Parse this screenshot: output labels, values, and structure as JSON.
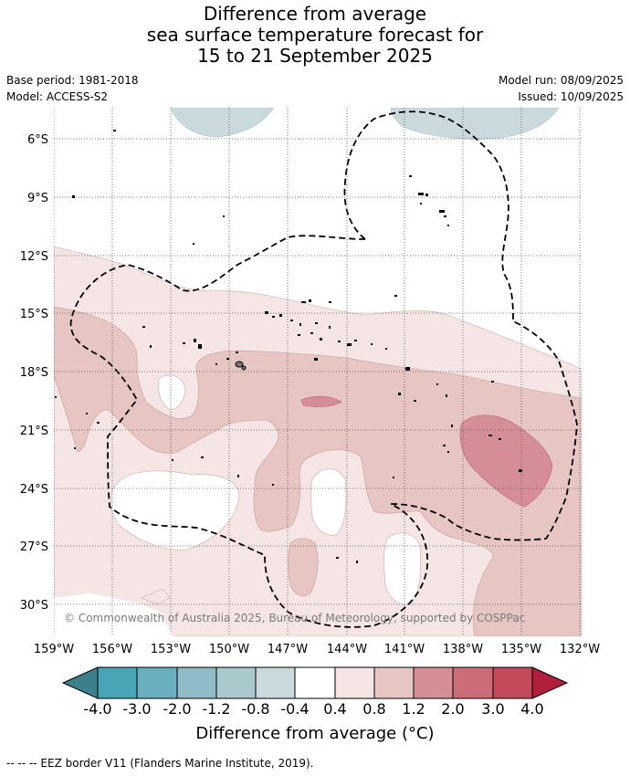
{
  "title": {
    "line1": "Difference from average",
    "line2": "sea surface temperature forecast for",
    "line3": "15 to 21 September 2025"
  },
  "meta": {
    "base_period": "Base period: 1981-2018",
    "model": "Model: ACCESS-S2",
    "model_run": "Model run: 08/09/2025",
    "issued": "Issued: 10/09/2025"
  },
  "map": {
    "lat_labels": [
      "6°S",
      "9°S",
      "12°S",
      "15°S",
      "18°S",
      "21°S",
      "24°S",
      "27°S",
      "30°S"
    ],
    "lon_labels": [
      "159°W",
      "156°W",
      "153°W",
      "150°W",
      "147°W",
      "144°W",
      "141°W",
      "138°W",
      "135°W",
      "132°W"
    ],
    "copyright": "© Commonwealth of Australia 2025, Bureau of Meteorology, supported by COSPPac",
    "colors": {
      "band_0_4_0_8": "#f5e5e4",
      "band_0_8_1_2": "#e6c5c3",
      "band_1_2_2_0": "#d58e96",
      "band_2_0_3_0": "#cc6c78",
      "band_neg_0_8_neg_0_4": "#c9d9dc",
      "eez_border": "#000000"
    }
  },
  "colorbar": {
    "title": "Difference from average (°C)",
    "tick_labels": [
      "-4.0",
      "-3.0",
      "-2.0",
      "-1.2",
      "-0.8",
      "-0.4",
      "0.4",
      "0.8",
      "1.2",
      "2.0",
      "3.0",
      "4.0"
    ],
    "colors": [
      "#3e7f8c",
      "#49a4b5",
      "#6aafbf",
      "#8fbdc7",
      "#aac9cd",
      "#c9d9dc",
      "#ffffff",
      "#f5e5e4",
      "#e6c5c3",
      "#d58e96",
      "#cc6c78",
      "#c34a5b",
      "#b21f3d"
    ]
  },
  "footnote": "--  --  -- EEZ border V11 (Flanders Marine Institute, 2019)."
}
